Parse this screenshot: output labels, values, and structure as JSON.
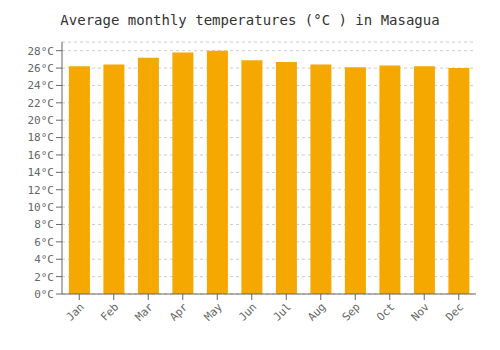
{
  "chart_data": {
    "type": "bar",
    "title": "Average monthly temperatures (°C ) in Masagua",
    "categories": [
      "Jan",
      "Feb",
      "Mar",
      "Apr",
      "May",
      "Jun",
      "Jul",
      "Aug",
      "Sep",
      "Oct",
      "Nov",
      "Dec"
    ],
    "values": [
      26.2,
      26.4,
      27.2,
      27.8,
      28.0,
      26.9,
      26.7,
      26.4,
      26.1,
      26.3,
      26.2,
      26.0
    ],
    "color": "#F5A800",
    "ylim": [
      0,
      29
    ],
    "yticks": [
      {
        "value": 0,
        "label": "0°C"
      },
      {
        "value": 2,
        "label": "2°C"
      },
      {
        "value": 4,
        "label": "4°C"
      },
      {
        "value": 6,
        "label": "6°C"
      },
      {
        "value": 8,
        "label": "8°C"
      },
      {
        "value": 10,
        "label": "10°C"
      },
      {
        "value": 12,
        "label": "12°C"
      },
      {
        "value": 14,
        "label": "14°C"
      },
      {
        "value": 16,
        "label": "16°C"
      },
      {
        "value": 18,
        "label": "18°C"
      },
      {
        "value": 20,
        "label": "20°C"
      },
      {
        "value": 22,
        "label": "22°C"
      },
      {
        "value": 24,
        "label": "24°C"
      },
      {
        "value": 26,
        "label": "26°C"
      },
      {
        "value": 28,
        "label": "28°C"
      }
    ],
    "grid": true
  }
}
